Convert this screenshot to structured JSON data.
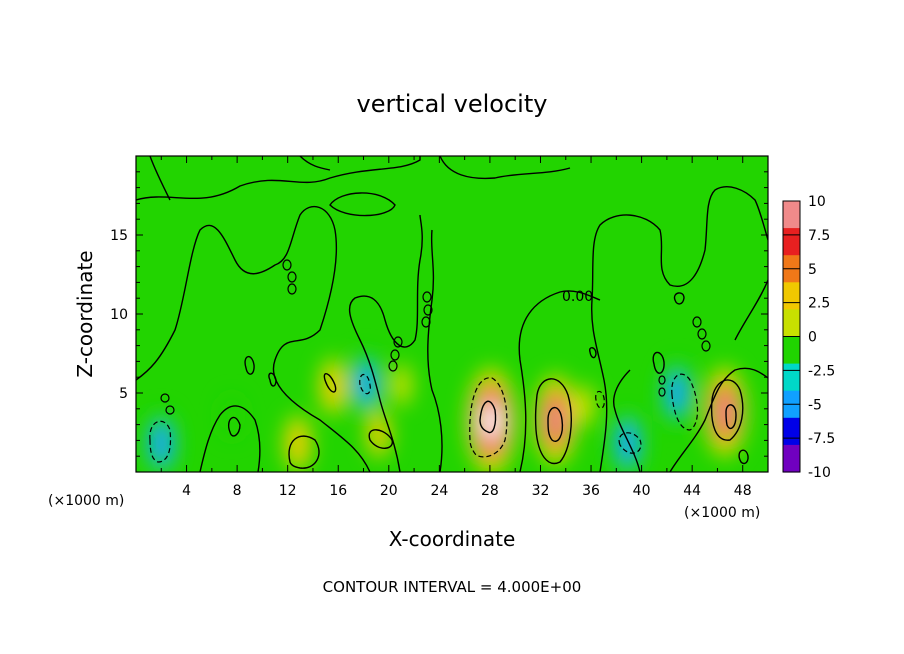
{
  "chart_data": {
    "type": "heatmap",
    "title": "vertical velocity",
    "xlabel": "X-coordinate",
    "ylabel": "Z-coordinate",
    "x_unit_left": "(×1000 m)",
    "x_unit_right": "(×1000 m)",
    "xlim": [
      0,
      50
    ],
    "ylim": [
      0,
      20
    ],
    "x_ticks": [
      "4",
      "8",
      "12",
      "16",
      "20",
      "24",
      "28",
      "32",
      "36",
      "40",
      "44",
      "48"
    ],
    "y_ticks": [
      "5",
      "10",
      "15"
    ],
    "colorbar": {
      "range": [
        -10,
        10
      ],
      "tick_labels": [
        "10",
        "7.5",
        "5",
        "2.5",
        "0",
        "-2.5",
        "-5",
        "-7.5",
        "-10"
      ],
      "colors": [
        "#f08a8a",
        "#e82020",
        "#f07818",
        "#f0c800",
        "#c8e000",
        "#20d400",
        "#00d8c8",
        "#10a0ff",
        "#0000e8",
        "#7000c0"
      ]
    },
    "contour_label": "0.00",
    "footer": "CONTOUR INTERVAL = 4.000E+00",
    "features": [
      {
        "x": 2.0,
        "z": 1.8,
        "value": -6
      },
      {
        "x": 12.8,
        "z": 1.8,
        "value": 5
      },
      {
        "x": 15.6,
        "z": 5.4,
        "value": 5
      },
      {
        "x": 18.2,
        "z": 5.6,
        "value": -6
      },
      {
        "x": 19.2,
        "z": 2.4,
        "value": 4
      },
      {
        "x": 21.0,
        "z": 5.5,
        "value": 3
      },
      {
        "x": 27.8,
        "z": 3.8,
        "value": -8
      },
      {
        "x": 28.1,
        "z": 3.2,
        "value": 11
      },
      {
        "x": 33.2,
        "z": 3.3,
        "value": 9
      },
      {
        "x": 38.9,
        "z": 1.8,
        "value": -6
      },
      {
        "x": 42.8,
        "z": 5.0,
        "value": -6
      },
      {
        "x": 46.6,
        "z": 3.8,
        "value": 9
      },
      {
        "x": 35.5,
        "z": 4.2,
        "value": 2
      },
      {
        "x": 7.6,
        "z": 3.5,
        "value": -3
      }
    ]
  }
}
